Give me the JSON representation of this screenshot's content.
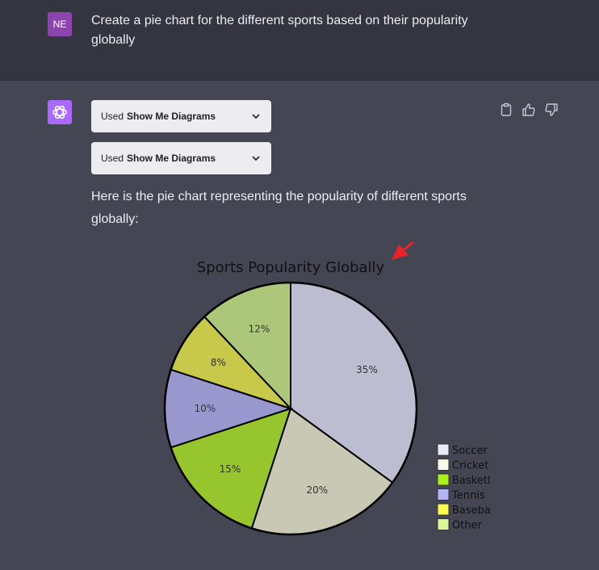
{
  "user_message": {
    "avatar_initials": "NE",
    "text": "Create a pie chart for the different sports based on their popularity globally"
  },
  "assistant": {
    "avatar_icon": "openai-logo-icon",
    "plugin_calls": [
      {
        "prefix": "Used",
        "name": "Show Me Diagrams"
      },
      {
        "prefix": "Used",
        "name": "Show Me Diagrams"
      }
    ],
    "text": "Here is the pie chart representing the popularity of different sports globally:",
    "actions": [
      "clipboard-icon",
      "thumbs-up-icon",
      "thumbs-down-icon"
    ]
  },
  "colors": {
    "user_bg": "#343541",
    "assistant_bg": "#444654",
    "arrow": "#e8232a"
  },
  "chart_data": {
    "type": "pie",
    "title": "Sports Popularity Globally",
    "slices": [
      {
        "label": "Soccer",
        "value": 35,
        "display": "35%",
        "color": "#bcbdd0",
        "legend_color": "#ebebf7",
        "legend_text": "Soccer"
      },
      {
        "label": "Cricket",
        "value": 20,
        "display": "20%",
        "color": "#c8c8b4",
        "legend_color": "#fafae8",
        "legend_text": "Cricket"
      },
      {
        "label": "Basketball",
        "value": 15,
        "display": "15%",
        "color": "#97c52e",
        "legend_color": "#a8f01e",
        "legend_text": "Basketl"
      },
      {
        "label": "Tennis",
        "value": 10,
        "display": "10%",
        "color": "#9898cf",
        "legend_color": "#b4b4f5",
        "legend_text": "Tennis"
      },
      {
        "label": "Baseball",
        "value": 8,
        "display": "8%",
        "color": "#c8c84a",
        "legend_color": "#fafa50",
        "legend_text": "Baseba"
      },
      {
        "label": "Other",
        "value": 12,
        "display": "12%",
        "color": "#adc77a",
        "legend_color": "#dcf596",
        "legend_text": "Other"
      }
    ],
    "legend_position": "right",
    "start_angle": "12 o'clock",
    "direction": "clockwise"
  }
}
